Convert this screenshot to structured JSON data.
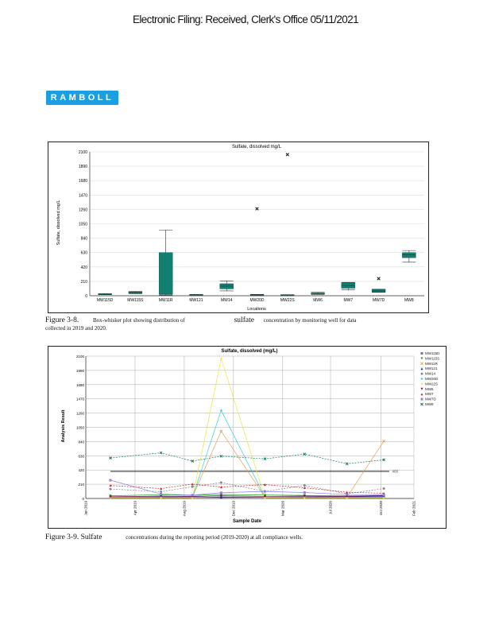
{
  "header": {
    "stamp": "Electronic Filing: Received, Clerk's Office 05/11/2021"
  },
  "logo": {
    "text": "RAMBOLL"
  },
  "figure_3_8": {
    "label": "Figure 3-8.",
    "caption_a": "Box-whisker plot showing distribution of",
    "caption_b": "sulfate",
    "caption_c": "concentration by monitoring well for data",
    "caption_d": "collected in 2019 and 2020."
  },
  "figure_3_9": {
    "label": "Figure 3-9. Sulfate",
    "caption": "concentrations during the reporting period (2019-2020) at all compliance wells."
  },
  "chart_data": [
    {
      "type": "box",
      "title": "Sulfate, dissolved mg/L",
      "xlabel": "Locations",
      "ylabel": "Sulfate, dissolved mg/L",
      "ylim": [
        0,
        2100
      ],
      "yticks": [
        0,
        210,
        420,
        630,
        840,
        1050,
        1260,
        1470,
        1680,
        1890,
        2100
      ],
      "box_color": "#127f70",
      "boxes": [
        {
          "name": "MW115D",
          "min": 15,
          "q1": 18,
          "median": 22,
          "q3": 28,
          "max": 30,
          "outliers": []
        },
        {
          "name": "MW115S",
          "min": 30,
          "q1": 38,
          "median": 45,
          "q3": 55,
          "max": 65,
          "outliers": []
        },
        {
          "name": "MW11R",
          "min": 10,
          "q1": 20,
          "median": 22,
          "q3": 630,
          "max": 960,
          "outliers": []
        },
        {
          "name": "MW121",
          "min": 12,
          "q1": 14,
          "median": 15,
          "q3": 17,
          "max": 18,
          "outliers": []
        },
        {
          "name": "MW14",
          "min": 70,
          "q1": 100,
          "median": 140,
          "q3": 175,
          "max": 215,
          "outliers": []
        },
        {
          "name": "MW20D",
          "min": 5,
          "q1": 10,
          "median": 12,
          "q3": 15,
          "max": 20,
          "outliers": [
            1270
          ]
        },
        {
          "name": "MW22S",
          "min": 5,
          "q1": 8,
          "median": 10,
          "q3": 12,
          "max": 15,
          "outliers": [
            2060
          ]
        },
        {
          "name": "MW6",
          "min": 20,
          "q1": 25,
          "median": 32,
          "q3": 40,
          "max": 50,
          "outliers": []
        },
        {
          "name": "MW7",
          "min": 85,
          "q1": 110,
          "median": 150,
          "q3": 190,
          "max": 195,
          "outliers": []
        },
        {
          "name": "MW7D",
          "min": 50,
          "q1": 55,
          "median": 70,
          "q3": 90,
          "max": 95,
          "outliers": [
            250
          ]
        },
        {
          "name": "MW8",
          "min": 490,
          "q1": 555,
          "median": 595,
          "q3": 630,
          "max": 660,
          "outliers": []
        }
      ]
    },
    {
      "type": "line",
      "title": "Sulfate, dissolved (mg/L)",
      "xlabel": "Sample Date",
      "ylabel": "Analysis Result",
      "ylim": [
        0,
        2100
      ],
      "xlim_months_since_jan_2019": [
        0,
        24
      ],
      "yticks": [
        0,
        210,
        420,
        630,
        840,
        1050,
        1260,
        1470,
        1680,
        1890,
        2100
      ],
      "xticks": [
        {
          "m": 0,
          "label": "Jan 2019"
        },
        {
          "m": 3.6,
          "label": "Apr 2019"
        },
        {
          "m": 7.2,
          "label": "Aug 2019"
        },
        {
          "m": 10.8,
          "label": "Dec 2019"
        },
        {
          "m": 14.4,
          "label": "Mar 2020"
        },
        {
          "m": 17.9,
          "label": "Jul 2020"
        },
        {
          "m": 21.6,
          "label": "Oct 2020"
        },
        {
          "m": 24,
          "label": "Feb 2021"
        }
      ],
      "x": [
        1.8,
        5.5,
        7.8,
        9.9,
        13.1,
        16.0,
        19.1,
        21.8
      ],
      "reference_line": {
        "value": 400,
        "label": "400"
      },
      "legend_position": "right",
      "series": [
        {
          "name": "MW115D",
          "color": "#6a6ae0",
          "marker": "■",
          "dash": false,
          "values": [
            20,
            25,
            20,
            22,
            20,
            25,
            20,
            22
          ]
        },
        {
          "name": "MW115S",
          "color": "#1a9a1a",
          "marker": "▼",
          "dash": false,
          "values": [
            40,
            55,
            45,
            60,
            50,
            45,
            40,
            45
          ]
        },
        {
          "name": "MW11R",
          "color": "#e8a050",
          "marker": "✕",
          "dash": false,
          "values": [
            20,
            20,
            20,
            993,
            20,
            20,
            20,
            847
          ]
        },
        {
          "name": "MW121",
          "color": "#2020b0",
          "marker": "▲",
          "dash": false,
          "values": [
            15,
            20,
            25,
            15,
            20,
            20,
            25,
            30
          ]
        },
        {
          "name": "MW14",
          "color": "#888888",
          "marker": "●",
          "dash": true,
          "values": [
            139,
            100,
            173,
            235,
            104,
            192,
            69,
            146
          ]
        },
        {
          "name": "MW20D",
          "color": "#30d0e0",
          "marker": "+",
          "dash": false,
          "values": [
            15,
            15,
            15,
            1300,
            20,
            15,
            15,
            15
          ]
        },
        {
          "name": "MW22S",
          "color": "#e8e840",
          "marker": "+",
          "dash": false,
          "values": [
            10,
            10,
            10,
            2064,
            10,
            10,
            10,
            10
          ]
        },
        {
          "name": "MW6",
          "color": "#801040",
          "marker": "▼",
          "dash": false,
          "values": [
            25,
            35,
            30,
            40,
            30,
            35,
            30,
            40
          ]
        },
        {
          "name": "MW7",
          "color": "#d02030",
          "marker": "▲",
          "dash": true,
          "values": [
            192,
            146,
            212,
            169,
            204,
            158,
            92,
            77
          ]
        },
        {
          "name": "MW7D",
          "color": "#9080e8",
          "marker": "■",
          "dash": false,
          "values": [
            270,
            65,
            50,
            85,
            104,
            88,
            58,
            54
          ]
        },
        {
          "name": "MW8",
          "color": "#127f5a",
          "marker": "✕",
          "dash": true,
          "values": [
            597,
            674,
            551,
            624,
            585,
            655,
            512,
            570
          ]
        }
      ]
    }
  ]
}
